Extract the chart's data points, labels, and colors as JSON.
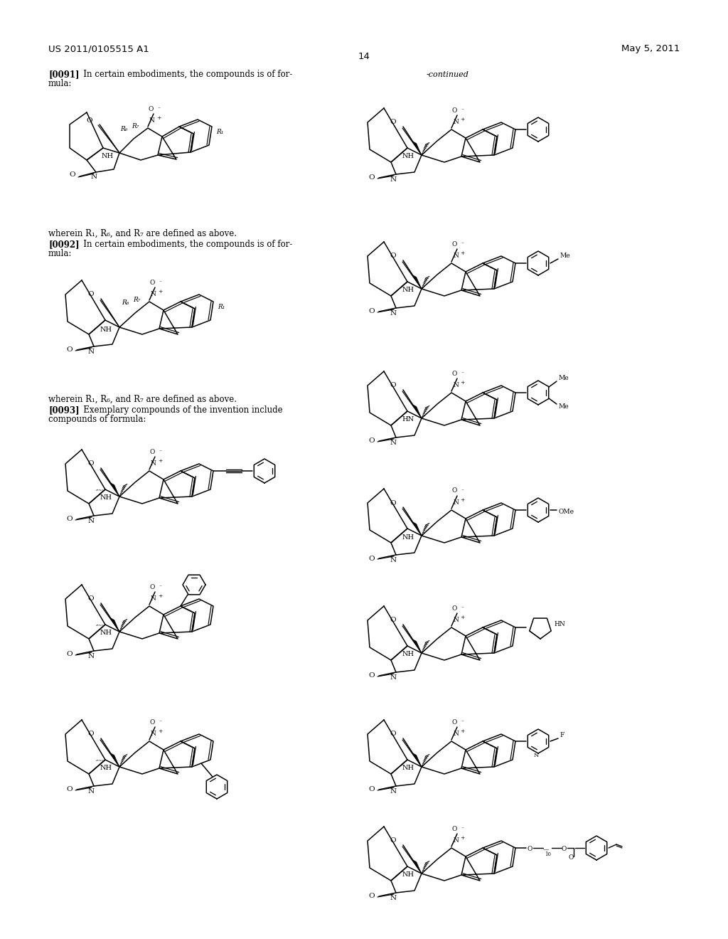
{
  "header_left": "US 2011/0105515 A1",
  "header_right": "May 5, 2011",
  "page_number": "14",
  "continued_label": "-continued",
  "bg_color": "#ffffff",
  "para_0091_bold": "[0091]",
  "para_0091_text": "   In certain embodiments, the compounds is of for-",
  "para_0091_text2": "mula:",
  "para_0092_wherein": "wherein R₁, R₆, and R₇ are defined as above.",
  "para_0092_bold": "[0092]",
  "para_0092_text": "   In certain embodiments, the compounds is of for-",
  "para_0092_text2": "mula:",
  "para_0092_wherein2": "wherein R₁, R₆, and R₇ are defined as above.",
  "para_0093_bold": "[0093]",
  "para_0093_text": "   Exemplary compounds of the invention include",
  "para_0093_text2": "compounds of formula:"
}
